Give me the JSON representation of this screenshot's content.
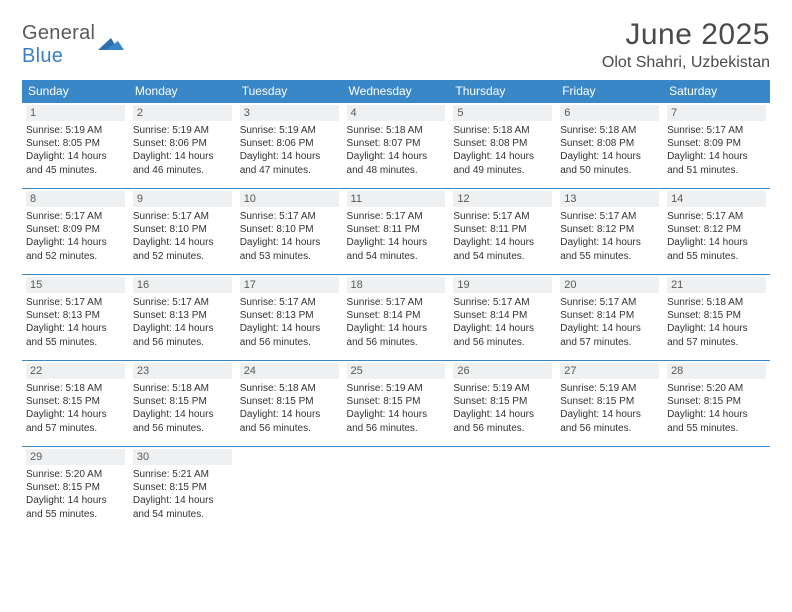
{
  "logo": {
    "text_left": "General",
    "text_blue": "Blue"
  },
  "title": "June 2025",
  "location": "Olot Shahri, Uzbekistan",
  "colors": {
    "header_bg": "#3a87c8",
    "header_fg": "#ffffff",
    "daynum_bg": "#eef0f1",
    "border": "#3a87c8",
    "text": "#333333",
    "title_fg": "#4a4a4a",
    "logo_gray": "#5a5a5a",
    "logo_blue": "#3a7fc4"
  },
  "weekdays": [
    "Sunday",
    "Monday",
    "Tuesday",
    "Wednesday",
    "Thursday",
    "Friday",
    "Saturday"
  ],
  "weeks": [
    [
      {
        "n": "1",
        "sr": "5:19 AM",
        "ss": "8:05 PM",
        "dl": "14 hours and 45 minutes."
      },
      {
        "n": "2",
        "sr": "5:19 AM",
        "ss": "8:06 PM",
        "dl": "14 hours and 46 minutes."
      },
      {
        "n": "3",
        "sr": "5:19 AM",
        "ss": "8:06 PM",
        "dl": "14 hours and 47 minutes."
      },
      {
        "n": "4",
        "sr": "5:18 AM",
        "ss": "8:07 PM",
        "dl": "14 hours and 48 minutes."
      },
      {
        "n": "5",
        "sr": "5:18 AM",
        "ss": "8:08 PM",
        "dl": "14 hours and 49 minutes."
      },
      {
        "n": "6",
        "sr": "5:18 AM",
        "ss": "8:08 PM",
        "dl": "14 hours and 50 minutes."
      },
      {
        "n": "7",
        "sr": "5:17 AM",
        "ss": "8:09 PM",
        "dl": "14 hours and 51 minutes."
      }
    ],
    [
      {
        "n": "8",
        "sr": "5:17 AM",
        "ss": "8:09 PM",
        "dl": "14 hours and 52 minutes."
      },
      {
        "n": "9",
        "sr": "5:17 AM",
        "ss": "8:10 PM",
        "dl": "14 hours and 52 minutes."
      },
      {
        "n": "10",
        "sr": "5:17 AM",
        "ss": "8:10 PM",
        "dl": "14 hours and 53 minutes."
      },
      {
        "n": "11",
        "sr": "5:17 AM",
        "ss": "8:11 PM",
        "dl": "14 hours and 54 minutes."
      },
      {
        "n": "12",
        "sr": "5:17 AM",
        "ss": "8:11 PM",
        "dl": "14 hours and 54 minutes."
      },
      {
        "n": "13",
        "sr": "5:17 AM",
        "ss": "8:12 PM",
        "dl": "14 hours and 55 minutes."
      },
      {
        "n": "14",
        "sr": "5:17 AM",
        "ss": "8:12 PM",
        "dl": "14 hours and 55 minutes."
      }
    ],
    [
      {
        "n": "15",
        "sr": "5:17 AM",
        "ss": "8:13 PM",
        "dl": "14 hours and 55 minutes."
      },
      {
        "n": "16",
        "sr": "5:17 AM",
        "ss": "8:13 PM",
        "dl": "14 hours and 56 minutes."
      },
      {
        "n": "17",
        "sr": "5:17 AM",
        "ss": "8:13 PM",
        "dl": "14 hours and 56 minutes."
      },
      {
        "n": "18",
        "sr": "5:17 AM",
        "ss": "8:14 PM",
        "dl": "14 hours and 56 minutes."
      },
      {
        "n": "19",
        "sr": "5:17 AM",
        "ss": "8:14 PM",
        "dl": "14 hours and 56 minutes."
      },
      {
        "n": "20",
        "sr": "5:17 AM",
        "ss": "8:14 PM",
        "dl": "14 hours and 57 minutes."
      },
      {
        "n": "21",
        "sr": "5:18 AM",
        "ss": "8:15 PM",
        "dl": "14 hours and 57 minutes."
      }
    ],
    [
      {
        "n": "22",
        "sr": "5:18 AM",
        "ss": "8:15 PM",
        "dl": "14 hours and 57 minutes."
      },
      {
        "n": "23",
        "sr": "5:18 AM",
        "ss": "8:15 PM",
        "dl": "14 hours and 56 minutes."
      },
      {
        "n": "24",
        "sr": "5:18 AM",
        "ss": "8:15 PM",
        "dl": "14 hours and 56 minutes."
      },
      {
        "n": "25",
        "sr": "5:19 AM",
        "ss": "8:15 PM",
        "dl": "14 hours and 56 minutes."
      },
      {
        "n": "26",
        "sr": "5:19 AM",
        "ss": "8:15 PM",
        "dl": "14 hours and 56 minutes."
      },
      {
        "n": "27",
        "sr": "5:19 AM",
        "ss": "8:15 PM",
        "dl": "14 hours and 56 minutes."
      },
      {
        "n": "28",
        "sr": "5:20 AM",
        "ss": "8:15 PM",
        "dl": "14 hours and 55 minutes."
      }
    ],
    [
      {
        "n": "29",
        "sr": "5:20 AM",
        "ss": "8:15 PM",
        "dl": "14 hours and 55 minutes."
      },
      {
        "n": "30",
        "sr": "5:21 AM",
        "ss": "8:15 PM",
        "dl": "14 hours and 54 minutes."
      },
      null,
      null,
      null,
      null,
      null
    ]
  ],
  "labels": {
    "sunrise": "Sunrise:",
    "sunset": "Sunset:",
    "daylight": "Daylight:"
  }
}
